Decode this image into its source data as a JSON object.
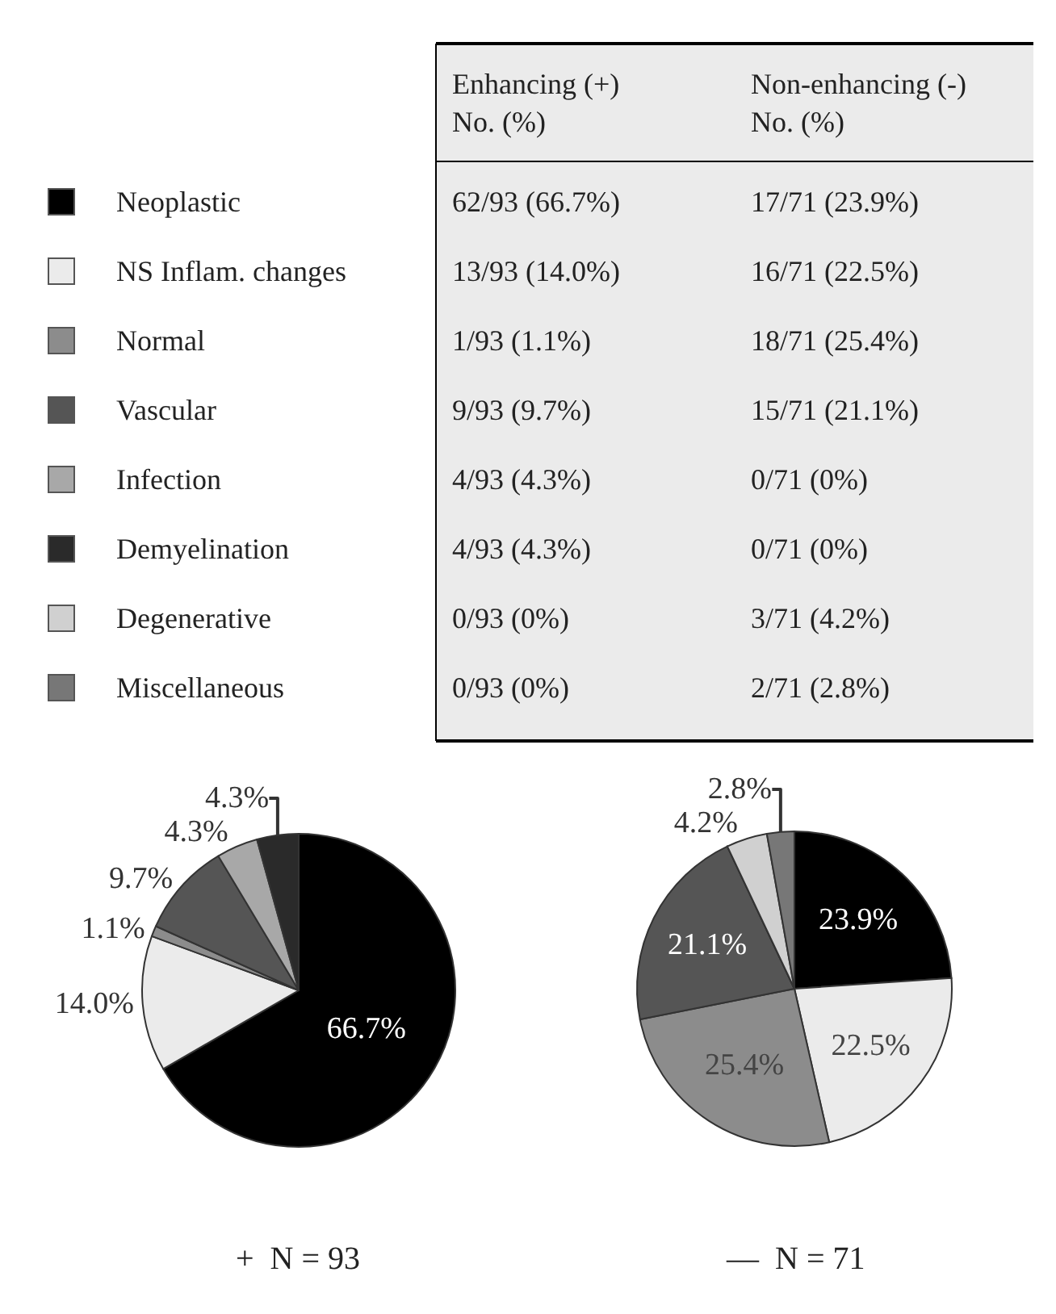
{
  "chart_data": [
    {
      "type": "pie",
      "title": "+  N = 93",
      "subtitle": "Enhancing (+)\nNo. (%)",
      "legend": "left",
      "categories": [
        "Neoplastic",
        "NS Inflam. changes",
        "Normal",
        "Vascular",
        "Infection",
        "Demyelination",
        "Degenerative",
        "Miscellaneous"
      ],
      "values": [
        66.7,
        14.0,
        1.1,
        9.7,
        4.3,
        4.3,
        0,
        0
      ],
      "colors": [
        "#000000",
        "#ebebeb",
        "#8c8c8c",
        "#555555",
        "#a8a8a8",
        "#2a2a2a",
        "#d0d0d0",
        "#777777"
      ],
      "value_labels": [
        "66.7%",
        "14.0%",
        "1.1%",
        "9.7%",
        "4.3%",
        "4.3%",
        null,
        null
      ],
      "annotations": [
        "62/93 (66.7%)",
        "13/93 (14.0%)",
        "1/93 (1.1%)",
        "9/93 (9.7%)",
        "4/93 (4.3%)",
        "4/93 (4.3%)",
        "0/93 (0%)",
        "0/93 (0%)"
      ]
    },
    {
      "type": "pie",
      "title": "—  N = 71",
      "subtitle": "Non-enhancing (-)\nNo. (%)",
      "categories": [
        null,
        null,
        null,
        null,
        null,
        null,
        null,
        null
      ],
      "values": [
        23.9,
        22.5,
        25.4,
        21.1,
        0,
        0,
        4.2,
        2.8
      ],
      "colors": [
        "#000000",
        "#ebebeb",
        "#8c8c8c",
        "#555555",
        "#a8a8a8",
        "#2a2a2a",
        "#d0d0d0",
        "#777777"
      ],
      "value_labels": [
        "23.9%",
        "22.5%",
        "25.4%",
        "21.1%",
        null,
        null,
        "4.2%",
        "2.8%"
      ],
      "annotations": [
        "17/71 (23.9%)",
        "16/71 (22.5%)",
        "18/71 (25.4%)",
        "15/71 (21.1%)",
        "0/71 (0%)",
        "0/71 (0%)",
        "3/71 (4.2%)",
        "2/71 (2.8%)"
      ]
    }
  ]
}
